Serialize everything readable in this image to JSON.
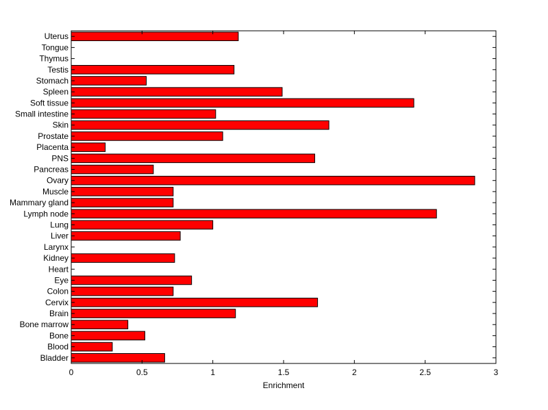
{
  "chart_data": {
    "type": "bar",
    "orientation": "horizontal",
    "title": "",
    "xlabel": "Enrichment",
    "ylabel": "",
    "xlim": [
      0,
      3
    ],
    "xticks": [
      0,
      0.5,
      1,
      1.5,
      2,
      2.5,
      3
    ],
    "xtick_labels": [
      "0",
      "0.5",
      "1",
      "1.5",
      "2",
      "2.5",
      "3"
    ],
    "grid": false,
    "legend": "none",
    "bar_color": "#ff0000",
    "bar_edge_color": "#000000",
    "categories": [
      "Bladder",
      "Blood",
      "Bone",
      "Bone marrow",
      "Brain",
      "Cervix",
      "Colon",
      "Eye",
      "Heart",
      "Kidney",
      "Larynx",
      "Liver",
      "Lung",
      "Lymph node",
      "Mammary gland",
      "Muscle",
      "Ovary",
      "Pancreas",
      "PNS",
      "Placenta",
      "Prostate",
      "Skin",
      "Small intestine",
      "Soft tissue",
      "Spleen",
      "Stomach",
      "Testis",
      "Thymus",
      "Tongue",
      "Uterus"
    ],
    "values": [
      0.66,
      0.29,
      0.52,
      0.4,
      1.16,
      1.74,
      0.72,
      0.85,
      0,
      0.73,
      0,
      0.77,
      1.0,
      2.58,
      0.72,
      0.72,
      2.85,
      0.58,
      1.72,
      0.24,
      1.07,
      1.82,
      1.02,
      2.42,
      1.49,
      0.53,
      1.15,
      0,
      0,
      1.18
    ]
  }
}
